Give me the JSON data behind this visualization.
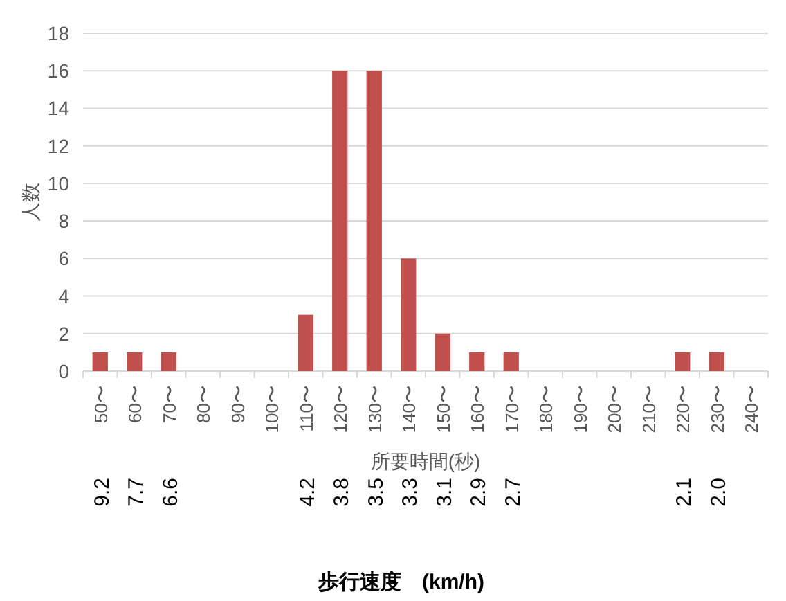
{
  "chart_data": {
    "type": "bar",
    "ylabel": "人数",
    "xlabel": "所要時間(秒)",
    "categories": [
      "50〜",
      "60〜",
      "70〜",
      "80〜",
      "90〜",
      "100〜",
      "110〜",
      "120〜",
      "130〜",
      "140〜",
      "150〜",
      "160〜",
      "170〜",
      "180〜",
      "190〜",
      "200〜",
      "210〜",
      "220〜",
      "230〜",
      "240〜"
    ],
    "values": [
      1,
      1,
      1,
      0,
      0,
      0,
      3,
      16,
      16,
      6,
      2,
      1,
      1,
      0,
      0,
      0,
      0,
      1,
      1,
      0
    ],
    "color": "#c0504d",
    "ylim": [
      0,
      18
    ],
    "yticks": [
      0,
      2,
      4,
      6,
      8,
      10,
      12,
      14,
      16,
      18
    ],
    "grid": "y",
    "annotations": [
      "9.2",
      "7.7",
      "6.6",
      "4.2",
      "3.8",
      "3.5",
      "3.3",
      "3.1",
      "2.9",
      "2.7",
      "2.1",
      "2.0",
      "歩行速度　(km/h)"
    ]
  }
}
